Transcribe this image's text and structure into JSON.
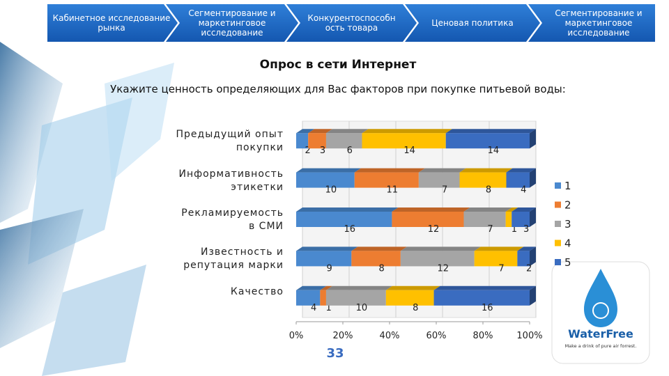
{
  "nav": [
    "Кабинетное исследование рынка",
    "Сегментирование и маркетинговое исследование",
    "Конкурентоспособн ость товара",
    "Ценовая политика",
    "Сегментирование и маркетинговое исследование"
  ],
  "chart_data": {
    "type": "bar",
    "orientation": "horizontal",
    "stacked": "percent",
    "title": "Опрос в сети Интернет",
    "subtitle": "Укажите ценность определяющих для Вас факторов при покупке питьевой воды:",
    "categories": [
      "Предыдущий опыт покупки",
      "Информативность этикетки",
      "Рекламируемость в СМИ",
      "Известность и репутация марки",
      "Качество"
    ],
    "series": [
      {
        "name": "1",
        "color": "#4a89cf",
        "values": [
          2,
          10,
          16,
          9,
          4
        ]
      },
      {
        "name": "2",
        "color": "#ed7d31",
        "values": [
          3,
          11,
          12,
          8,
          1
        ]
      },
      {
        "name": "3",
        "color": "#a5a5a5",
        "values": [
          6,
          7,
          7,
          12,
          10
        ]
      },
      {
        "name": "4",
        "color": "#ffc000",
        "values": [
          14,
          8,
          1,
          7,
          8
        ]
      },
      {
        "name": "5",
        "color": "#3a6cc0",
        "values": [
          14,
          4,
          3,
          2,
          16
        ]
      }
    ],
    "xlim": [
      0,
      100
    ],
    "xticks": [
      {
        "value": 0,
        "label": "0%"
      },
      {
        "value": 20,
        "label": "20%"
      },
      {
        "value": 40,
        "label": "40%"
      },
      {
        "value": 60,
        "label": "60%"
      },
      {
        "value": 80,
        "label": "80%"
      },
      {
        "value": 100,
        "label": "100%"
      }
    ],
    "grid": true,
    "legend": "right",
    "annotation": "33"
  },
  "logo": {
    "name": "WaterFree",
    "tagline": "Make a drink of pure air forrest."
  }
}
